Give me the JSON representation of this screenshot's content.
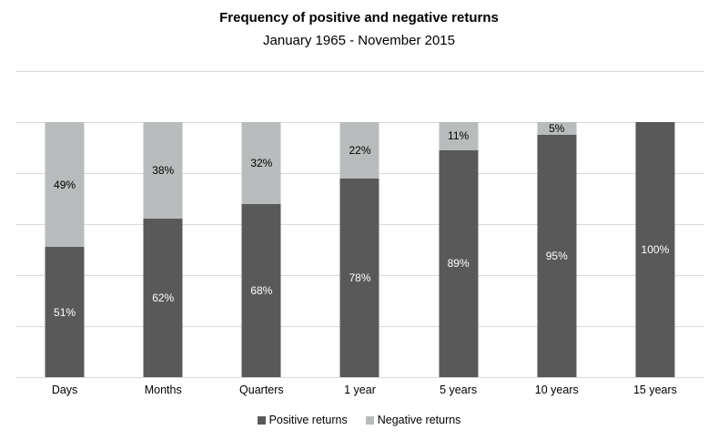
{
  "title": "Frequency of positive and negative returns",
  "subtitle": "January 1965 - November 2015",
  "colors": {
    "positive": "#595959",
    "negative": "#b9bcbc",
    "gridline": "#d9d9d9",
    "divider": "#d9d9d9",
    "label_on_positive": "#ffffff",
    "label_on_negative": "#000000"
  },
  "legend": {
    "items": [
      {
        "label": "Positive returns",
        "color_key": "positive"
      },
      {
        "label": "Negative returns",
        "color_key": "negative"
      }
    ]
  },
  "chart_data": {
    "type": "bar",
    "stacked": true,
    "title": "Frequency of positive and negative returns",
    "subtitle": "January 1965 - November 2015",
    "categories": [
      "Days",
      "Months",
      "Quarters",
      "1 year",
      "5 years",
      "10 years",
      "15 years"
    ],
    "series": [
      {
        "name": "Positive returns",
        "values": [
          51,
          62,
          68,
          78,
          89,
          95,
          100
        ]
      },
      {
        "name": "Negative returns",
        "values": [
          49,
          38,
          32,
          22,
          11,
          5,
          0
        ]
      }
    ],
    "value_suffix": "%",
    "ylim": [
      0,
      100
    ],
    "grid": true,
    "gridline_interval": 20,
    "y_axis_labels_visible": false,
    "legend_position": "bottom"
  }
}
